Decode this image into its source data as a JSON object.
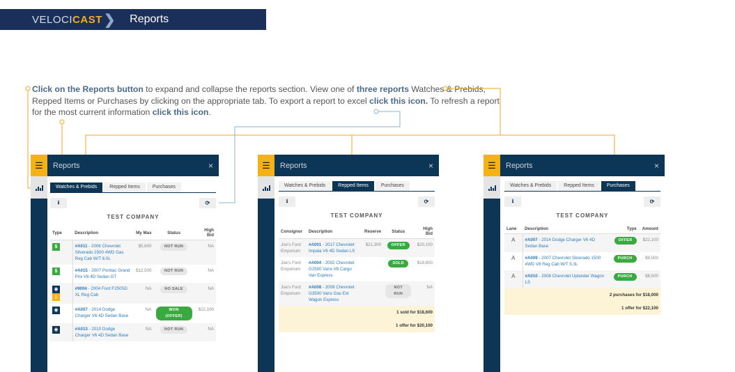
{
  "header": {
    "logo_light": "VELOCI",
    "logo_bold": "CAST",
    "title": "Reports"
  },
  "instructions": {
    "b1": "Click on the Reports button",
    "t1": " to expand and collapse the reports section. View one of ",
    "b2": "three reports",
    "t2": " Watches & Prebids, Repped Items or Purchases by clicking on the appropriate tab. To export a report to excel ",
    "b3": "click this icon.",
    "t3": " To refresh a report for the most current information ",
    "b4": "click this icon",
    "t4": "."
  },
  "colors": {
    "navy": "#0d3556",
    "accent": "#f4b216",
    "green": "#3aa93f",
    "connector": "#f5a623",
    "connector_alt": "#8fb3cc"
  },
  "panel": {
    "title": "Reports",
    "close": "×",
    "tabs": [
      "Watches & Prebids",
      "Repped Items",
      "Purchases"
    ],
    "company": "TEST COMPANY",
    "export_icon": "download-icon",
    "refresh_icon": "refresh-icon"
  },
  "watches": {
    "active_tab": "Watches & Prebids",
    "columns": [
      "Type",
      "Description",
      "My Max",
      "Status",
      "High Bid"
    ],
    "rows": [
      {
        "id": "#A011",
        "desc": " - 2006 Chevrolet Silverado 2500 4WD Gas Reg Cab W/T 6.0L",
        "max": "$5,600",
        "status": "NOT RUN",
        "bid": "NA",
        "icons": [
          "dollar"
        ]
      },
      {
        "id": "#A015",
        "desc": " - 2007 Pontiac Grand Prix V6 4D Sedan GT",
        "max": "$12,500",
        "status": "NOT RUN",
        "bid": "NA",
        "icons": [
          "dollar"
        ]
      },
      {
        "id": "#9004",
        "desc": " - 2004 Ford F250SD XL Reg Cab",
        "max": "NA",
        "status": "NO SALE",
        "bid": "NA",
        "icons": [
          "eye",
          "document"
        ]
      },
      {
        "id": "#A007",
        "desc": " - 2014 Dodge Charger V6 4D Sedan Base",
        "max": "NA",
        "status": "WON (OFFER)",
        "bid": "$22,100",
        "icons": [
          "eye"
        ]
      },
      {
        "id": "#A013",
        "desc": " - 2010 Dodge Charger V6 4D Sedan Base",
        "max": "NA",
        "status": "NOT RUN",
        "bid": "NA",
        "icons": [
          "eye"
        ]
      }
    ]
  },
  "repped": {
    "active_tab": "Repped Items",
    "columns": [
      "Consignor",
      "Description",
      "Reserve",
      "Status",
      "High Bid"
    ],
    "rows": [
      {
        "consignor": "Joe's Ford Emporium",
        "id": "#A001",
        "desc": " - 2017 Chevrolet Impala V6 4D Sedan LS",
        "reserve": "$21,300",
        "status": "OFFER",
        "bid": "$20,100"
      },
      {
        "consignor": "Joe's Ford Emporium",
        "id": "#A004",
        "desc": " - 2002 Chevrolet G2500 Vans V8 Cargo Van Express",
        "reserve": "",
        "status": "SOLD",
        "bid": "$18,600"
      },
      {
        "consignor": "Joe's Ford Emporium",
        "id": "#A008",
        "desc": " - 2009 Chevrolet G3500 Vans Gas Ext Wagon Express",
        "reserve": "",
        "status": "NOT RUN",
        "bid": "NA"
      }
    ],
    "summary": [
      "1 sold for $18,600",
      "1 offer for $20,100"
    ]
  },
  "purchases": {
    "active_tab": "Purchases",
    "columns": [
      "Lane",
      "Description",
      "Type",
      "Amount"
    ],
    "rows": [
      {
        "lane": "A",
        "id": "#A007",
        "desc": " - 2014 Dodge Charger V6 4D Sedan Base",
        "type": "OFFER",
        "amount": "$22,100"
      },
      {
        "lane": "A",
        "id": "#A009",
        "desc": " - 2007 Chevrolet Silverado 1500 4WD V8 Reg Cab W/T 5.3L",
        "type": "PURCH",
        "amount": "$9,500"
      },
      {
        "lane": "A",
        "id": "#A010",
        "desc": " - 2008 Chevrolet Uplander Wagon LS",
        "type": "PURCH",
        "amount": "$8,500"
      }
    ],
    "summary": [
      "2 purchases for $18,000",
      "1 offer for $22,100"
    ]
  }
}
